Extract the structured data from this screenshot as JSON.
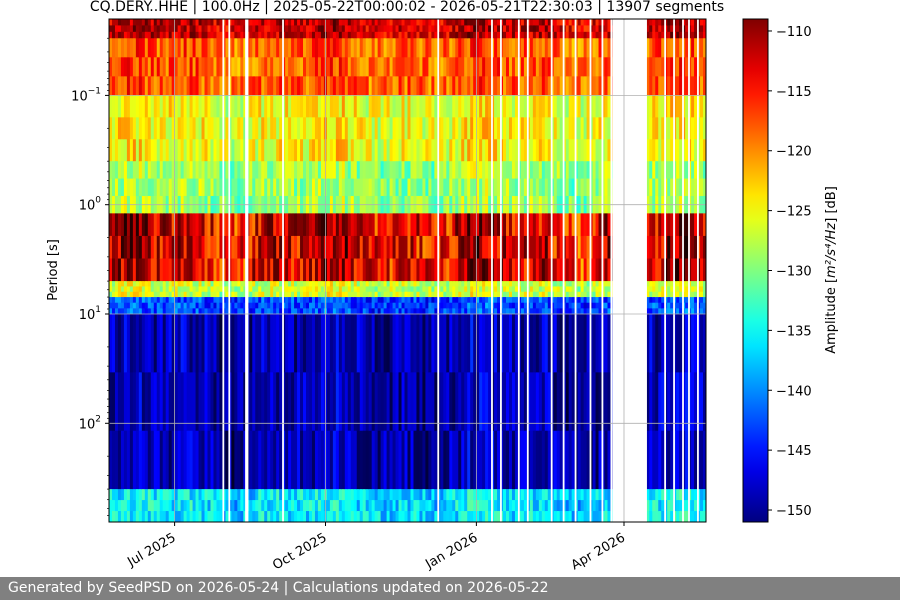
{
  "chart_data": {
    "type": "heatmap",
    "title": "CQ.DERY..HHE | 100.0Hz | 2025-05-22T00:00:02 - 2026-05-21T22:30:03 | 13907 segments",
    "xlabel": "",
    "ylabel": "Period [s]",
    "x_range": [
      "2025-05-22",
      "2026-05-21"
    ],
    "x_ticks": [
      {
        "date": "2025-07-01",
        "label": "Jul 2025"
      },
      {
        "date": "2025-10-01",
        "label": "Oct 2025"
      },
      {
        "date": "2026-01-01",
        "label": "Jan 2026"
      },
      {
        "date": "2026-04-01",
        "label": "Apr 2026"
      }
    ],
    "y_scale": "log",
    "y_inverted": true,
    "y_range": [
      0.02,
      800
    ],
    "y_ticks": [
      {
        "value": 0.1,
        "base": "10",
        "exp": "−1"
      },
      {
        "value": 1,
        "base": "10",
        "exp": "0"
      },
      {
        "value": 10,
        "base": "10",
        "exp": "1"
      },
      {
        "value": 100,
        "base": "10",
        "exp": "2"
      }
    ],
    "grid": true,
    "colorbar": {
      "label_prefix": "Amplitude [",
      "label_unit": "m²/s⁴/Hz",
      "label_suffix": "] [dB]",
      "range": [
        -151,
        -109
      ],
      "ticks": [
        -110,
        -115,
        -120,
        -125,
        -130,
        -135,
        -140,
        -145,
        -150
      ],
      "colormap": "jet"
    },
    "data_gaps": [
      [
        "2025-08-13",
        "2025-08-15"
      ],
      [
        "2026-03-25",
        "2026-04-02"
      ],
      [
        "2026-04-02",
        "2026-04-15"
      ]
    ],
    "band_levels_db": [
      {
        "period_range": [
          0.02,
          0.03
        ],
        "db": -112
      },
      {
        "period_range": [
          0.03,
          0.1
        ],
        "db": -118
      },
      {
        "period_range": [
          0.1,
          0.4
        ],
        "db": -125
      },
      {
        "period_range": [
          0.4,
          1.2
        ],
        "db": -129
      },
      {
        "period_range": [
          1.2,
          5
        ],
        "db": -113
      },
      {
        "period_range": [
          5,
          7
        ],
        "db": -127
      },
      {
        "period_range": [
          7,
          10
        ],
        "db": -143
      },
      {
        "period_range": [
          10,
          400
        ],
        "db": -149
      },
      {
        "period_range": [
          400,
          800
        ],
        "db": -136
      }
    ]
  },
  "footer": {
    "text": "Generated by SeedPSD on 2026-05-24 | Calculations updated on 2026-05-22"
  }
}
